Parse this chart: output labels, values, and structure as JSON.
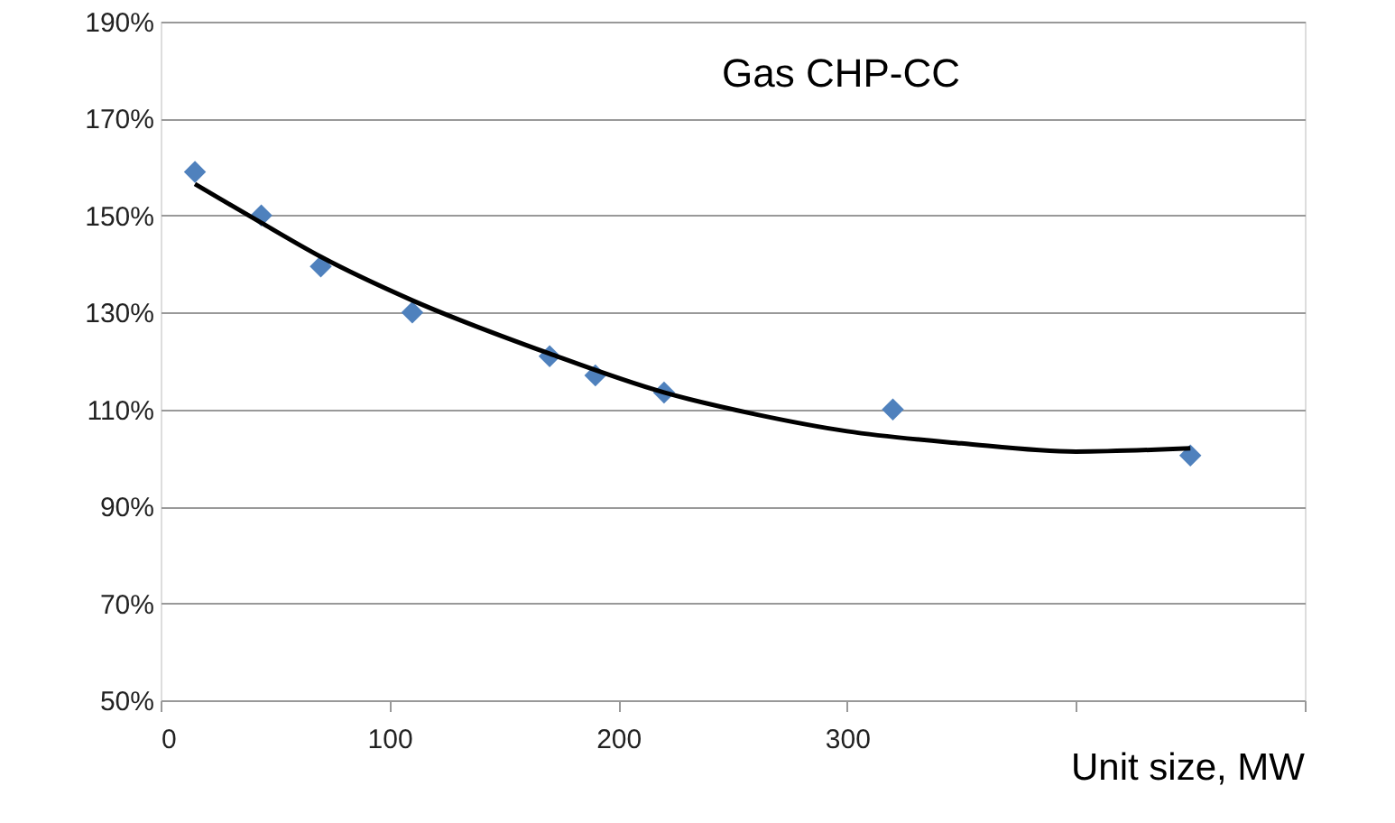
{
  "chart_data": {
    "type": "scatter",
    "title": "Gas CHP-CC",
    "xlabel": "Unit size, MW",
    "xlim": [
      0,
      500
    ],
    "xticks": [
      0,
      100,
      200,
      300,
      {
        "value": 400,
        "label": null
      },
      {
        "value": 500,
        "label": null
      }
    ],
    "ylim": [
      50,
      190
    ],
    "yticks": [
      {
        "value": 50,
        "label": "50%"
      },
      {
        "value": 70,
        "label": "70%"
      },
      {
        "value": 90,
        "label": "90%"
      },
      {
        "value": 110,
        "label": "110%"
      },
      {
        "value": 130,
        "label": "130%"
      },
      {
        "value": 150,
        "label": "150%"
      },
      {
        "value": 170,
        "label": "170%"
      },
      {
        "value": 190,
        "label": "190%"
      }
    ],
    "grid": "y",
    "marker": "diamond",
    "series": [
      {
        "color": "#4f81bd",
        "x": [
          15,
          44,
          70,
          110,
          170,
          190,
          220,
          320,
          450
        ],
        "values": [
          159,
          150,
          139.5,
          130,
          121,
          117,
          113.5,
          110,
          100.5
        ]
      },
      {
        "type": "line",
        "color": "#000000",
        "marker": "none",
        "line_style": "solid",
        "x": [
          15,
          44,
          70,
          110,
          170,
          220,
          260,
          300,
          350,
          400,
          450
        ],
        "values": [
          156.5,
          148.5,
          141.5,
          132.5,
          121.5,
          113.5,
          109,
          105.5,
          103,
          101.3,
          102
        ]
      }
    ]
  }
}
